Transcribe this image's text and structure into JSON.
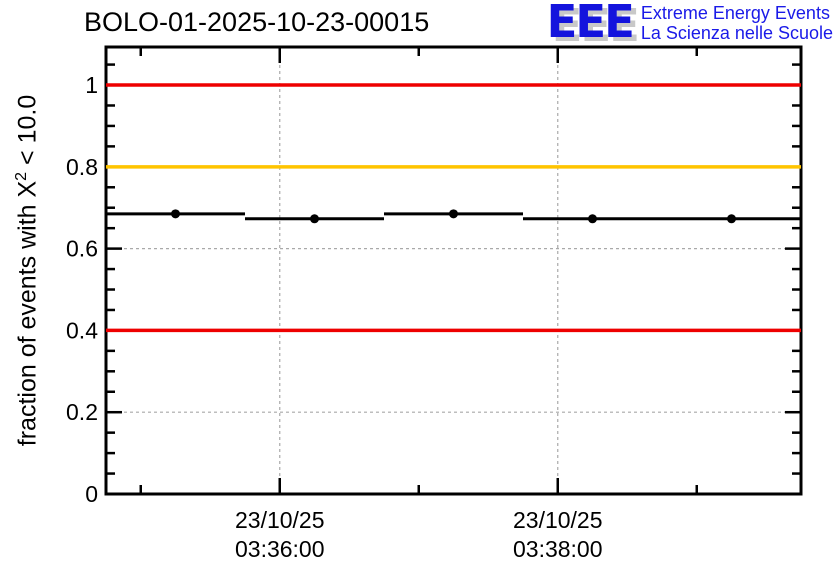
{
  "header": {
    "logo": {
      "acronym": "EEE",
      "line1": "Extreme Energy Events",
      "line2": "La Scienza nelle Scuole",
      "blue": "#1414dd",
      "shadow_gray": "#c8c8c8"
    }
  },
  "chart_data": {
    "type": "scatter",
    "title": "BOLO-01-2025-10-23-00015",
    "ylabel": "fraction of events with X^2 < 10.0",
    "ylabel_parts": {
      "pre": "fraction of events with X",
      "sup": "2",
      "post": " < 10.0"
    },
    "ylim": [
      0,
      1.093
    ],
    "grid": {
      "style": "dashed",
      "on": true,
      "color": "#a9a9a9"
    },
    "yaxis": {
      "major_ticks": [
        {
          "value": 0,
          "label": "0"
        },
        {
          "value": 0.2,
          "label": "0.2"
        },
        {
          "value": 0.4,
          "label": "0.4"
        },
        {
          "value": 0.6,
          "label": "0.6"
        },
        {
          "value": 0.8,
          "label": "0.8"
        },
        {
          "value": 1,
          "label": "1"
        }
      ],
      "minor_step": 0.05,
      "minor_max": 1.05
    },
    "xaxis": {
      "window_seconds": 300,
      "minute_ticks": [
        {
          "t": 15,
          "major": false,
          "label": null
        },
        {
          "t": 75,
          "major": true,
          "label": [
            "23/10/25",
            "03:36:00"
          ]
        },
        {
          "t": 135,
          "major": false,
          "label": null
        },
        {
          "t": 195,
          "major": true,
          "label": [
            "23/10/25",
            "03:38:00"
          ]
        },
        {
          "t": 255,
          "major": false,
          "label": null
        }
      ]
    },
    "thresholds": [
      {
        "value": 1.0,
        "color": "#ee0000"
      },
      {
        "value": 0.8,
        "color": "#ffc400"
      },
      {
        "value": 0.4,
        "color": "#ee0000"
      }
    ],
    "series": [
      {
        "name": "chi2-fraction",
        "marker": "filled-circle",
        "color": "#000000",
        "points": [
          {
            "t": 30,
            "value": 0.685,
            "terr_seconds": 30
          },
          {
            "t": 90,
            "value": 0.673,
            "terr_seconds": 30
          },
          {
            "t": 150,
            "value": 0.685,
            "terr_seconds": 30
          },
          {
            "t": 210,
            "value": 0.673,
            "terr_seconds": 30
          },
          {
            "t": 270,
            "value": 0.673,
            "terr_seconds": 30
          }
        ]
      }
    ]
  }
}
